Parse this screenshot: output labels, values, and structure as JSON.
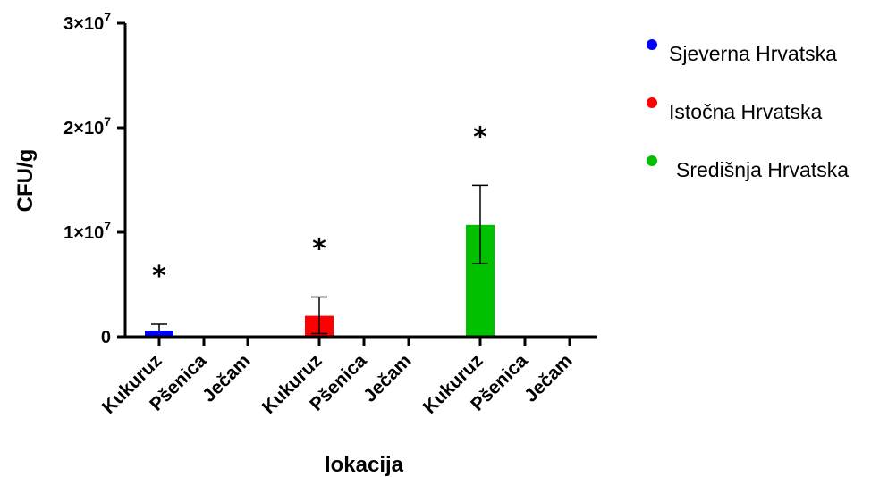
{
  "chart_data": {
    "type": "bar",
    "ylabel": "CFU/g",
    "xlabel": "lokacija",
    "ylim": [
      0,
      30000000
    ],
    "yticks": [
      {
        "value": 0,
        "label": "0"
      },
      {
        "value": 10000000,
        "label": "1×10",
        "exp": "7"
      },
      {
        "value": 20000000,
        "label": "2×10",
        "exp": "7"
      },
      {
        "value": 30000000,
        "label": "3×10",
        "exp": "7"
      }
    ],
    "groups": [
      {
        "name": "Sjeverna Hrvatska",
        "color": "#0000ff",
        "categories": [
          "Kukuruz",
          "Pšenica",
          "Ječam"
        ],
        "values": [
          600000,
          0,
          0
        ],
        "error_upper": [
          1200000,
          null,
          null
        ],
        "annotation": "*"
      },
      {
        "name": "Istočna Hrvatska",
        "color": "#ff0000",
        "categories": [
          "Kukuruz",
          "Pšenica",
          "Ječam"
        ],
        "values": [
          2000000,
          0,
          0
        ],
        "error_upper": [
          3800000,
          null,
          null
        ],
        "error_lower": [
          300000,
          null,
          null
        ],
        "annotation": "*"
      },
      {
        "name": "Središnja Hrvatska",
        "color": "#00c000",
        "categories": [
          "Kukuruz",
          "Pšenica",
          "Ječam"
        ],
        "values": [
          10700000,
          0,
          0
        ],
        "error_upper": [
          14500000,
          null,
          null
        ],
        "error_lower": [
          7000000,
          null,
          null
        ],
        "annotation": "*"
      }
    ],
    "legend": {
      "position": "top-right",
      "entries": [
        "Sjeverna Hrvatska",
        "Istočna Hrvatska",
        "Središnja Hrvatska"
      ]
    },
    "grid": false
  }
}
